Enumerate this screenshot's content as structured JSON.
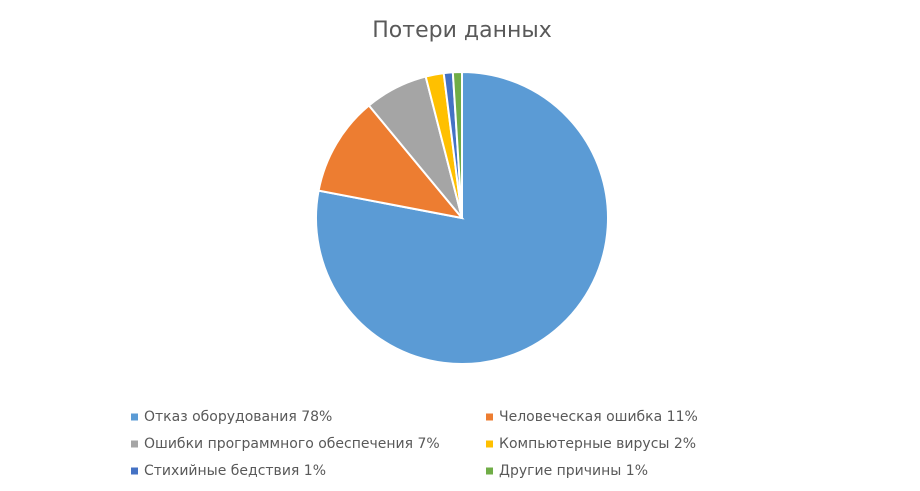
{
  "chart_data": {
    "type": "pie",
    "title": "Потери данных",
    "categories": [
      "Отказ оборудования 78%",
      "Человеческая ошибка 11%",
      "Ошибки программного обеспечения 7%",
      "Компьютерные вирусы 2%",
      "Стихийные бедствия 1%",
      "Другие причины 1%"
    ],
    "values": [
      78,
      11,
      7,
      2,
      1,
      1
    ],
    "colors": [
      "#5b9bd5",
      "#ed7d31",
      "#a5a5a5",
      "#ffc000",
      "#4472c4",
      "#70ad47"
    ],
    "legend": "bottom"
  }
}
